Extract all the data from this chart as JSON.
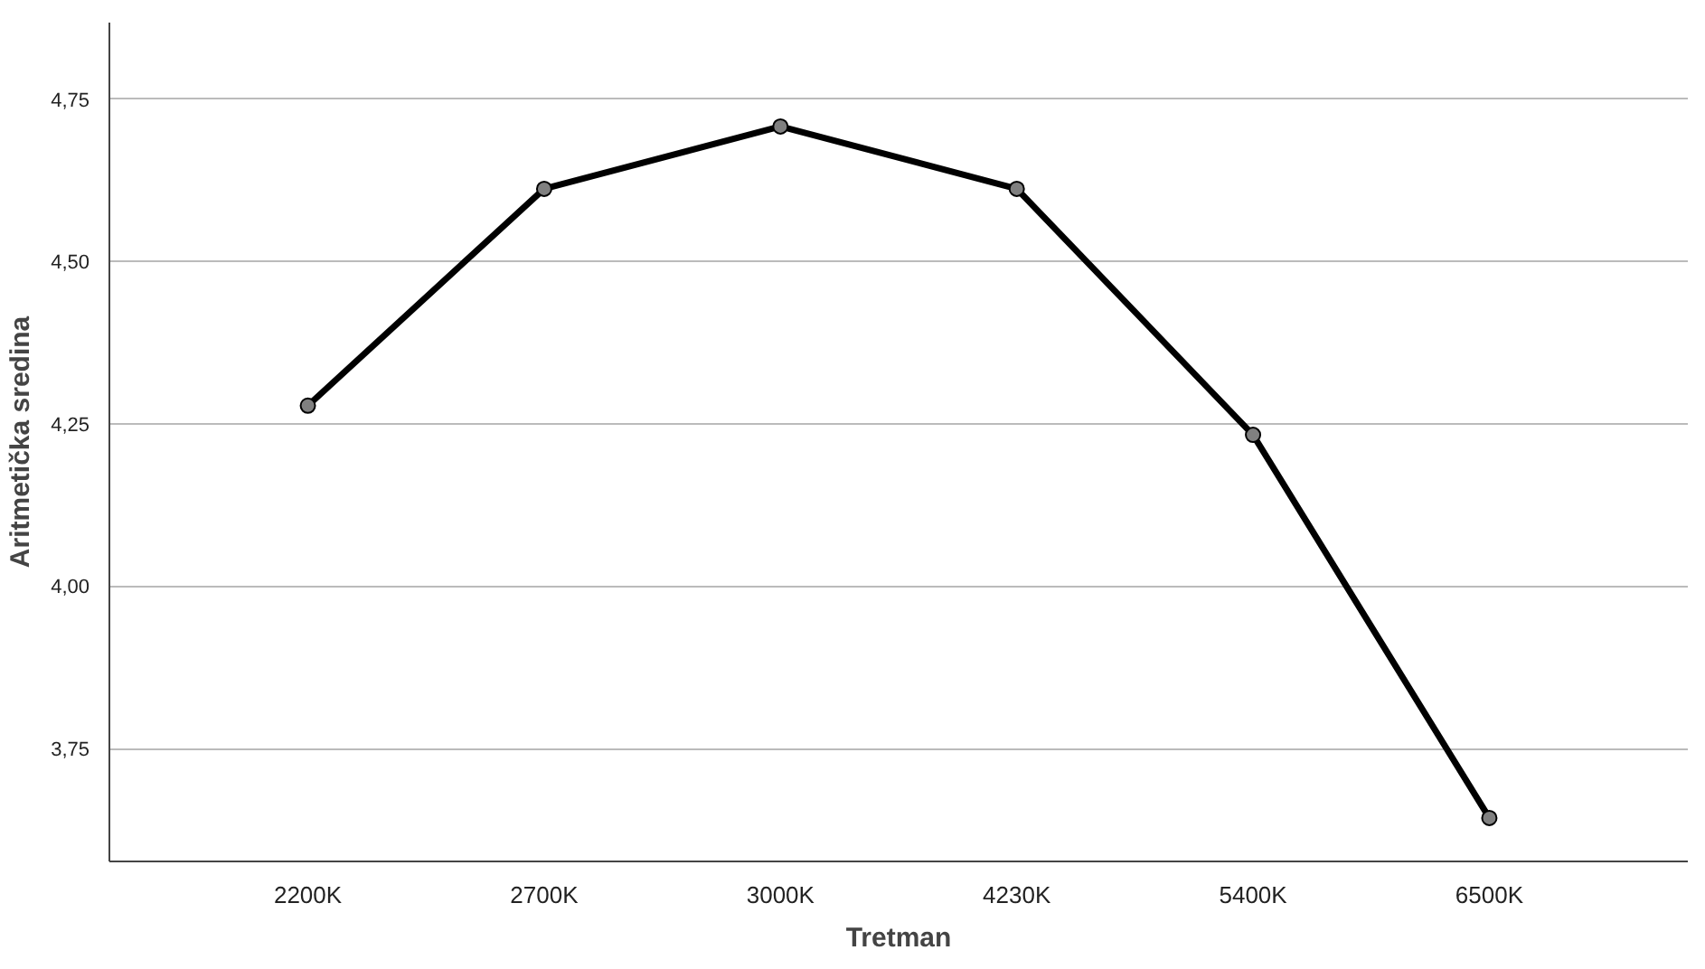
{
  "chart_data": {
    "type": "line",
    "xlabel": "Tretman",
    "ylabel": "Aritmetička sredina",
    "categories": [
      "2200K",
      "2700K",
      "3000K",
      "4230K",
      "5400K",
      "6500K"
    ],
    "series": [
      {
        "color": "#000000",
        "values": [
          4.278,
          4.612,
          4.708,
          4.612,
          4.233,
          3.643
        ]
      }
    ],
    "ylim": [
      3.576,
      4.868
    ],
    "yticks": [
      {
        "value": 3.75,
        "label": "3,75"
      },
      {
        "value": 4.0,
        "label": "4,00"
      },
      {
        "value": 4.25,
        "label": "4,25"
      },
      {
        "value": 4.5,
        "label": "4,50"
      },
      {
        "value": 4.75,
        "label": "4,75"
      }
    ],
    "grid": "y",
    "marker": "circle",
    "line_style": "solid"
  }
}
